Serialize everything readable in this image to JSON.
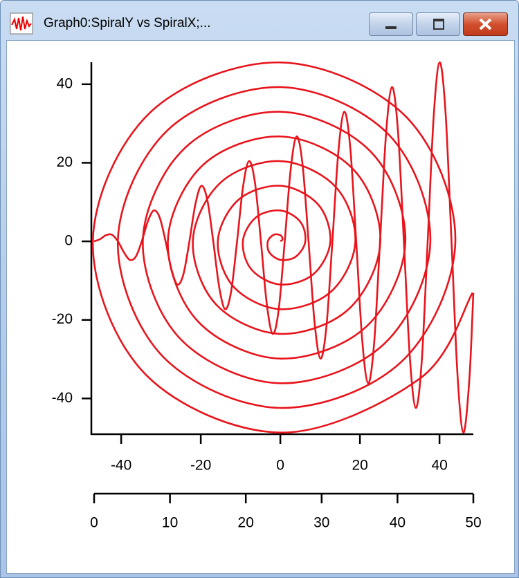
{
  "window": {
    "title": "Graph0:SpiralY vs SpiralX;..."
  },
  "chart_data": {
    "type": "line",
    "xlim": [
      -47.5,
      48.5
    ],
    "xticks": [
      -40,
      -20,
      0,
      20,
      40
    ],
    "ylim": [
      -49.1,
      45.6
    ],
    "yticks": [
      -40,
      -20,
      0,
      20,
      40
    ],
    "x2lim": [
      0,
      50
    ],
    "x2ticks": [
      0,
      10,
      20,
      30,
      40,
      50
    ],
    "series": [
      {
        "color": "#e8141c",
        "x": [
          0,
          0.56,
          0,
          -1.67,
          -3.14,
          -2.78,
          0,
          3.89,
          6.28,
          5.0,
          0,
          -6.11,
          -9.42,
          -7.22,
          0,
          8.33,
          12.57,
          9.44,
          0,
          -10.55,
          -15.71,
          -11.66,
          0,
          12.77,
          18.85,
          13.88,
          0,
          -14.99,
          -21.99,
          -16.11,
          0,
          17.22,
          25.13,
          18.33,
          0,
          -19.44,
          -28.27,
          -20.55,
          0,
          21.66,
          31.42,
          22.77,
          0,
          -23.88,
          -34.56,
          -24.99,
          0,
          26.1,
          37.7,
          27.21,
          0,
          -28.32,
          -40.84,
          -29.43,
          0,
          30.55,
          43.98,
          31.66,
          0,
          -32.77,
          -47.12,
          -33.88,
          0,
          34.99,
          48.3
        ],
        "values": [
          0,
          0.56,
          1.57,
          1.67,
          0,
          -2.78,
          -4.71,
          -3.89,
          0,
          5.0,
          7.85,
          6.11,
          0,
          -7.22,
          -11.0,
          -8.33,
          0,
          9.44,
          14.14,
          10.55,
          0,
          -11.66,
          -17.28,
          -12.77,
          0,
          13.88,
          20.42,
          14.99,
          0,
          -16.11,
          -23.56,
          -17.22,
          0,
          18.33,
          26.7,
          19.44,
          0,
          -20.55,
          -29.85,
          -21.66,
          0,
          22.77,
          32.99,
          23.88,
          0,
          -24.99,
          -36.13,
          -26.1,
          0,
          27.21,
          39.27,
          28.32,
          0,
          -29.43,
          -42.41,
          -30.55,
          0,
          31.66,
          45.55,
          32.77,
          0,
          -33.88,
          -48.69,
          -34.99,
          -13.11
        ]
      },
      {
        "color": "#e8141c",
        "axis": "x2",
        "x": [
          0,
          0.785,
          1.571,
          2.356,
          3.142,
          3.927,
          4.712,
          5.498,
          6.283,
          7.069,
          7.854,
          8.639,
          9.425,
          10.21,
          10.996,
          11.781,
          12.566,
          13.352,
          14.137,
          14.923,
          15.708,
          16.493,
          17.279,
          18.064,
          18.85,
          19.635,
          20.42,
          21.206,
          21.991,
          22.777,
          23.562,
          24.347,
          25.133,
          25.918,
          26.704,
          27.489,
          28.274,
          29.06,
          29.845,
          30.631,
          31.416,
          32.201,
          32.987,
          33.772,
          34.558,
          35.343,
          36.128,
          36.914,
          37.699,
          38.485,
          39.27,
          40.055,
          40.841,
          41.626,
          42.412,
          43.197,
          43.982,
          44.768,
          45.553,
          46.338,
          47.124,
          47.909,
          48.695,
          49.48,
          50
        ],
        "values": [
          0,
          0.56,
          1.57,
          1.67,
          0,
          -2.78,
          -4.71,
          -3.89,
          0,
          5.0,
          7.85,
          6.11,
          0,
          -7.22,
          -11.0,
          -8.33,
          0,
          9.44,
          14.14,
          10.55,
          0,
          -11.66,
          -17.28,
          -12.77,
          0,
          13.88,
          20.42,
          14.99,
          0,
          -16.11,
          -23.56,
          -17.22,
          0,
          18.33,
          26.7,
          19.44,
          0,
          -20.55,
          -29.85,
          -21.66,
          0,
          22.77,
          32.99,
          23.88,
          0,
          -24.99,
          -36.13,
          -26.1,
          0,
          27.21,
          39.27,
          28.32,
          0,
          -29.43,
          -42.41,
          -30.55,
          0,
          31.66,
          45.55,
          32.77,
          0,
          -33.88,
          -48.69,
          -34.99,
          -13.11
        ]
      }
    ]
  }
}
